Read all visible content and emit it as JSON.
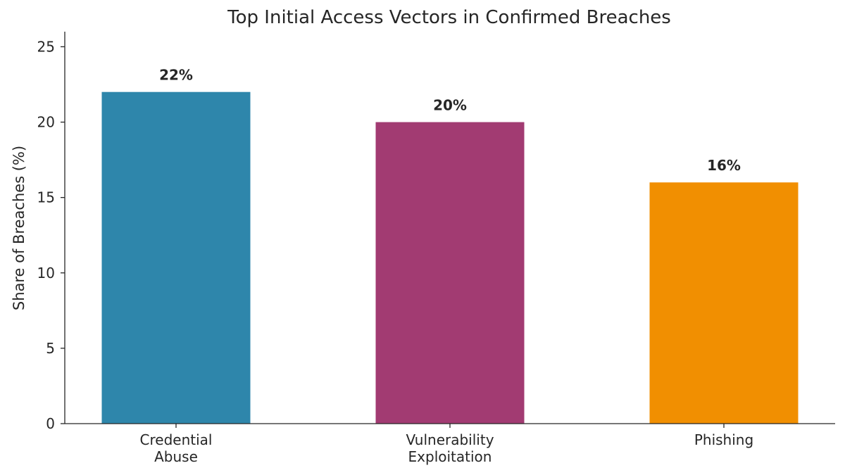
{
  "chart_data": {
    "type": "bar",
    "title": "Top Initial Access Vectors in Confirmed Breaches",
    "xlabel": "",
    "ylabel": "Share of Breaches (%)",
    "categories": [
      [
        "Credential",
        "Abuse"
      ],
      [
        "Vulnerability",
        "Exploitation"
      ],
      [
        "Phishing"
      ]
    ],
    "values": [
      22,
      20,
      16
    ],
    "data_labels": [
      "22%",
      "20%",
      "16%"
    ],
    "colors": [
      "#2e86ab",
      "#a23b72",
      "#f18f01"
    ],
    "ylim": [
      0,
      26
    ],
    "yticks": [
      0,
      5,
      10,
      15,
      20,
      25
    ],
    "grid": false,
    "legend": "none"
  }
}
